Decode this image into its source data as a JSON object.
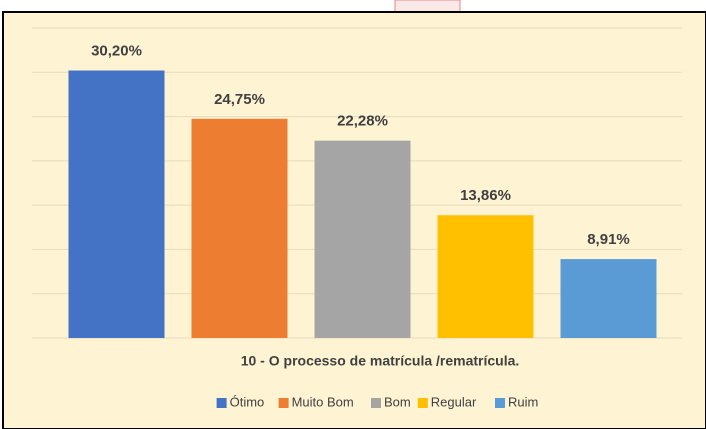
{
  "chart_data": {
    "type": "bar",
    "title": "10 - O processo de matrícula /rematrícula.",
    "categories": [
      "Ótimo",
      "Muito Bom",
      "Bom",
      "Regular",
      "Ruim"
    ],
    "values": [
      30.2,
      24.75,
      22.28,
      13.86,
      8.91
    ],
    "value_labels": [
      "30,20%",
      "24,75%",
      "22,28%",
      "13,86%",
      "8,91%"
    ],
    "colors": [
      "#4472c4",
      "#ed7d31",
      "#a5a5a5",
      "#ffc000",
      "#5b9bd5"
    ],
    "ylim": [
      0,
      35
    ],
    "yticks": [
      0,
      5,
      10,
      15,
      20,
      25,
      30,
      35
    ],
    "grid": true,
    "legend": "bottom"
  }
}
